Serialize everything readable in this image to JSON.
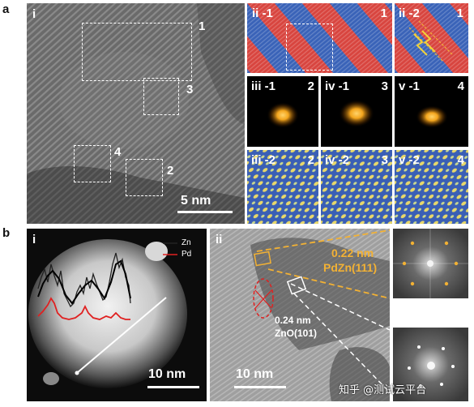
{
  "figure_letters": {
    "a": "a",
    "b": "b"
  },
  "panel_a": {
    "main": {
      "label": "i",
      "scale_bar": "5 nm",
      "region_labels": [
        "1",
        "2",
        "3",
        "4"
      ]
    },
    "tiles": [
      {
        "label": "ii -1",
        "num": "1",
        "style": "stripes"
      },
      {
        "label": "ii -2",
        "num": "1",
        "style": "stripes-arrows"
      },
      {
        "label": "iii -1",
        "num": "2",
        "style": "fft"
      },
      {
        "label": "iv -1",
        "num": "3",
        "style": "fft"
      },
      {
        "label": "v -1",
        "num": "4",
        "style": "fft"
      },
      {
        "label": "iii -2",
        "num": "2",
        "style": "filtered"
      },
      {
        "label": "iv -2",
        "num": "3",
        "style": "filtered"
      },
      {
        "label": "v -2",
        "num": "4",
        "style": "filtered"
      }
    ]
  },
  "panel_b": {
    "haadf": {
      "label": "i",
      "legend": [
        {
          "name": "Zn",
          "color": "#222222"
        },
        {
          "name": "Pd",
          "color": "#e02020"
        }
      ],
      "scale_bar": "10 nm"
    },
    "hrtem": {
      "label": "ii",
      "scale_bar": "10 nm",
      "annotation_top_line1": "0.22 nm",
      "annotation_top_line2": "PdZn(111)",
      "annotation_bottom_line1": "0.24 nm",
      "annotation_bottom_line2": "ZnO(101)"
    },
    "watermark": "知乎 @测试云平台"
  },
  "colors": {
    "annotation_orange": "#f2b134",
    "stripe_red": "#d8453f",
    "stripe_blue": "#3a63b8",
    "fft_glow": "#f3a51d"
  }
}
